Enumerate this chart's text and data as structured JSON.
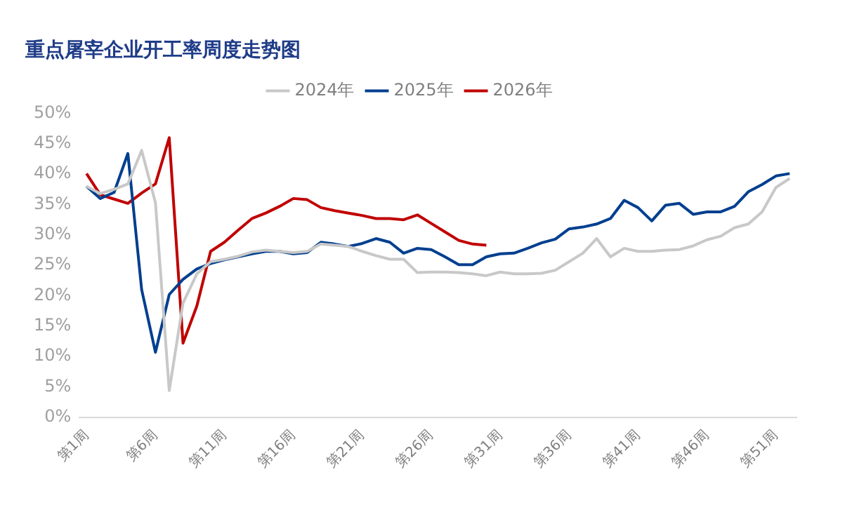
{
  "chart_data": {
    "type": "line",
    "title": "重点屠宰企业开工率周度走势图",
    "categories": [
      "第1周",
      null,
      null,
      null,
      null,
      "第6周",
      null,
      null,
      null,
      null,
      "第11周",
      null,
      null,
      null,
      null,
      "第16周",
      null,
      null,
      null,
      null,
      "第21周",
      null,
      null,
      null,
      null,
      "第26周",
      null,
      null,
      null,
      null,
      "第31周",
      null,
      null,
      null,
      null,
      "第36周",
      null,
      null,
      null,
      null,
      "第41周",
      null,
      null,
      null,
      null,
      "第46周",
      null,
      null,
      null,
      null,
      "第51周",
      null
    ],
    "series": [
      {
        "name": "2024年",
        "color": "#c8c8c8",
        "values": [
          38,
          36.8,
          37.5,
          38.4,
          43.9,
          35.3,
          4.4,
          18.8,
          23.6,
          25.6,
          26,
          26.5,
          27.2,
          27.5,
          27.3,
          27.1,
          27.3,
          28.5,
          28.3,
          28.1,
          27.3,
          26.6,
          26,
          26,
          23.8,
          23.9,
          23.9,
          23.8,
          23.6,
          23.3,
          23.9,
          23.6,
          23.6,
          23.7,
          24.2,
          25.6,
          27,
          29.4,
          26.4,
          27.8,
          27.3,
          27.3,
          27.5,
          27.6,
          28.2,
          29.2,
          29.8,
          31.2,
          31.8,
          33.8,
          37.8,
          39.3
        ]
      },
      {
        "name": "2025年",
        "color": "#003f8f",
        "values": [
          38,
          36,
          37,
          43.4,
          21,
          10.7,
          20.2,
          22.7,
          24.4,
          25.3,
          25.9,
          26.4,
          26.9,
          27.3,
          27.3,
          26.9,
          27.1,
          28.8,
          28.5,
          28.1,
          28.6,
          29.4,
          28.8,
          27,
          27.8,
          27.6,
          26.4,
          25.1,
          25.1,
          26.4,
          26.9,
          27,
          27.8,
          28.7,
          29.3,
          31,
          31.3,
          31.8,
          32.7,
          35.7,
          34.5,
          32.3,
          34.9,
          35.2,
          33.4,
          33.8,
          33.8,
          34.7,
          37.1,
          38.3,
          39.7,
          40.1
        ]
      },
      {
        "name": "2026年",
        "color": "#c00000",
        "values": [
          40.1,
          36.6,
          35.9,
          35.2,
          36.9,
          38.4,
          46,
          12.2,
          18.3,
          27.3,
          28.8,
          30.8,
          32.7,
          33.6,
          34.7,
          36,
          35.8,
          34.5,
          34,
          33.6,
          33.2,
          32.7,
          32.7,
          32.5,
          33.3,
          31.9,
          30.5,
          29.1,
          28.5,
          28.3,
          null,
          null,
          null,
          null,
          null,
          null,
          null,
          null,
          null,
          null,
          null,
          null,
          null,
          null,
          null,
          null,
          null,
          null,
          null,
          null,
          null,
          null
        ]
      }
    ],
    "ylim": [
      0,
      50
    ],
    "yticks": [
      {
        "value": 0,
        "label": "0%"
      },
      {
        "value": 5,
        "label": "5%"
      },
      {
        "value": 10,
        "label": "10%"
      },
      {
        "value": 15,
        "label": "15%"
      },
      {
        "value": 20,
        "label": "20%"
      },
      {
        "value": 25,
        "label": "25%"
      },
      {
        "value": 30,
        "label": "30%"
      },
      {
        "value": 35,
        "label": "35%"
      },
      {
        "value": 40,
        "label": "40%"
      },
      {
        "value": 45,
        "label": "45%"
      },
      {
        "value": 50,
        "label": "50%"
      }
    ],
    "grid": false,
    "legend": "top",
    "marker": "none",
    "line_style": "solid"
  }
}
